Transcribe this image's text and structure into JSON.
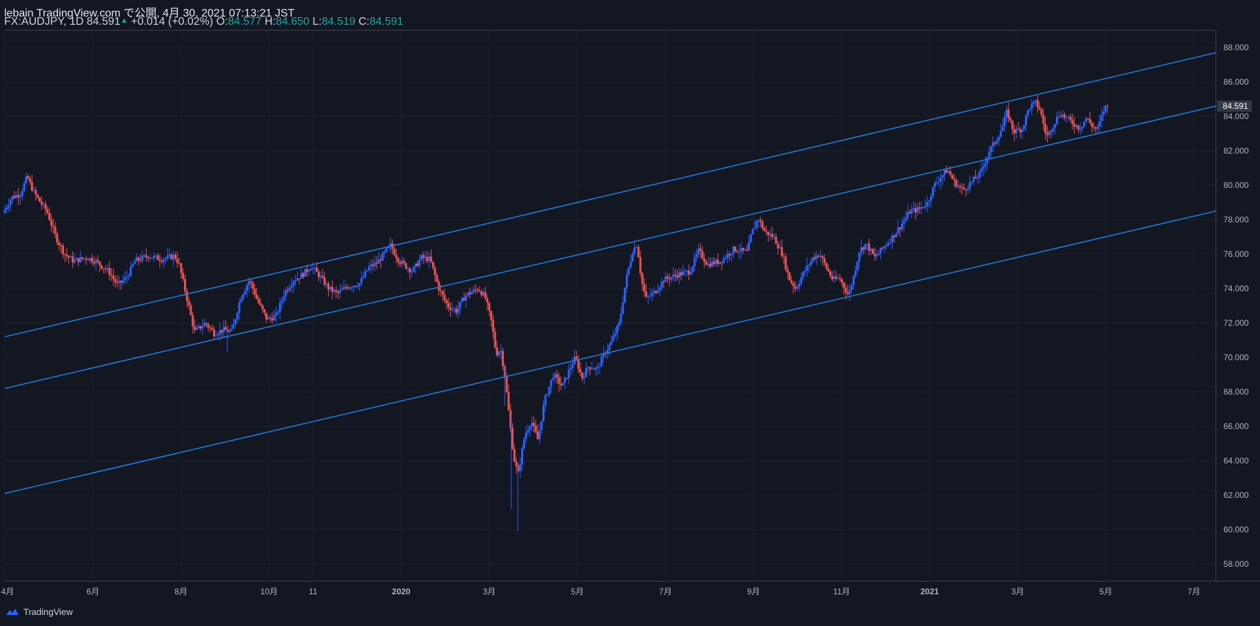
{
  "header": {
    "line1": "lebain TradingView.com で公開, 4月 30, 2021 07:13:21 JST",
    "symbol": "FX:AUDJPY, 1D",
    "last": "84.591",
    "change": "+0.014 (+0.02%)",
    "o_label": "O:",
    "o_value": "84.577",
    "h_label": "H:",
    "h_value": "84.650",
    "l_label": "L:",
    "l_value": "84.519",
    "c_label": "C:",
    "c_value": "84.591"
  },
  "footer": {
    "brand": "TradingView"
  },
  "colors": {
    "background": "#131722",
    "up": "#2962ff",
    "down": "#ef5350",
    "channel": "#2479d8",
    "text": "#b2b5be"
  },
  "chart_data": {
    "type": "candlestick",
    "symbol": "FX:AUDJPY",
    "interval": "1D",
    "ylim": [
      57.0,
      89.0
    ],
    "y_ticks": [
      "88.000",
      "86.000",
      "84.000",
      "82.000",
      "80.000",
      "78.000",
      "76.000",
      "74.000",
      "72.000",
      "70.000",
      "68.000",
      "66.000",
      "64.000",
      "62.000",
      "60.000",
      "58.000"
    ],
    "x_ticks": [
      {
        "label": "4月",
        "pos": 0.0
      },
      {
        "label": "6月",
        "pos": 2.0
      },
      {
        "label": "8月",
        "pos": 4.0
      },
      {
        "label": "10月",
        "pos": 6.0
      },
      {
        "label": "11",
        "pos": 7.0
      },
      {
        "label": "2020",
        "pos": 9.0,
        "bold": true
      },
      {
        "label": "3月",
        "pos": 11.0
      },
      {
        "label": "5月",
        "pos": 13.0
      },
      {
        "label": "7月",
        "pos": 15.0
      },
      {
        "label": "9月",
        "pos": 17.0
      },
      {
        "label": "11月",
        "pos": 19.0
      },
      {
        "label": "2021",
        "pos": 21.0,
        "bold": true
      },
      {
        "label": "3月",
        "pos": 23.0
      },
      {
        "label": "5月",
        "pos": 25.0
      },
      {
        "label": "7月",
        "pos": 27.0
      }
    ],
    "last_price_label": "84.591",
    "last_price": 84.591,
    "price_path": [
      [
        0.0,
        78.4
      ],
      [
        0.2,
        79.3
      ],
      [
        0.4,
        79.5
      ],
      [
        0.55,
        80.5
      ],
      [
        0.7,
        79.6
      ],
      [
        0.85,
        79.0
      ],
      [
        1.0,
        78.5
      ],
      [
        1.2,
        77.0
      ],
      [
        1.4,
        76.0
      ],
      [
        1.6,
        75.6
      ],
      [
        1.9,
        75.8
      ],
      [
        2.1,
        75.6
      ],
      [
        2.4,
        75.0
      ],
      [
        2.6,
        74.2
      ],
      [
        2.8,
        74.6
      ],
      [
        3.0,
        75.6
      ],
      [
        3.3,
        75.9
      ],
      [
        3.6,
        75.7
      ],
      [
        3.9,
        75.9
      ],
      [
        4.0,
        75.4
      ],
      [
        4.2,
        73.2
      ],
      [
        4.35,
        71.5
      ],
      [
        4.6,
        72.0
      ],
      [
        4.8,
        71.4
      ],
      [
        5.0,
        71.6
      ],
      [
        5.2,
        71.5
      ],
      [
        5.4,
        73.5
      ],
      [
        5.6,
        74.5
      ],
      [
        5.8,
        73.2
      ],
      [
        6.0,
        72.2
      ],
      [
        6.2,
        72.4
      ],
      [
        6.4,
        73.8
      ],
      [
        6.6,
        74.5
      ],
      [
        6.8,
        74.8
      ],
      [
        7.0,
        75.3
      ],
      [
        7.2,
        74.7
      ],
      [
        7.4,
        74.0
      ],
      [
        7.6,
        73.7
      ],
      [
        7.8,
        74.1
      ],
      [
        8.1,
        74.3
      ],
      [
        8.3,
        75.2
      ],
      [
        8.5,
        75.5
      ],
      [
        8.8,
        76.5
      ],
      [
        9.0,
        75.6
      ],
      [
        9.3,
        75.0
      ],
      [
        9.5,
        75.8
      ],
      [
        9.7,
        75.7
      ],
      [
        9.9,
        74.0
      ],
      [
        10.1,
        73.0
      ],
      [
        10.3,
        72.7
      ],
      [
        10.5,
        73.6
      ],
      [
        10.8,
        74.0
      ],
      [
        10.95,
        73.5
      ],
      [
        11.1,
        72.0
      ],
      [
        11.2,
        70.2
      ],
      [
        11.3,
        70.5
      ],
      [
        11.4,
        68.9
      ],
      [
        11.5,
        66.5
      ],
      [
        11.6,
        64.2
      ],
      [
        11.7,
        63.2
      ],
      [
        11.85,
        65.5
      ],
      [
        12.0,
        66.3
      ],
      [
        12.15,
        65.2
      ],
      [
        12.3,
        67.5
      ],
      [
        12.5,
        69.0
      ],
      [
        12.7,
        68.3
      ],
      [
        12.9,
        69.5
      ],
      [
        13.0,
        70.0
      ],
      [
        13.15,
        68.8
      ],
      [
        13.3,
        69.5
      ],
      [
        13.5,
        69.3
      ],
      [
        13.65,
        70.2
      ],
      [
        13.8,
        70.8
      ],
      [
        14.0,
        72.0
      ],
      [
        14.15,
        74.5
      ],
      [
        14.3,
        76.2
      ],
      [
        14.4,
        76.6
      ],
      [
        14.5,
        74.5
      ],
      [
        14.6,
        73.4
      ],
      [
        14.8,
        73.8
      ],
      [
        15.0,
        74.5
      ],
      [
        15.3,
        74.8
      ],
      [
        15.6,
        75.0
      ],
      [
        15.8,
        76.2
      ],
      [
        16.0,
        75.4
      ],
      [
        16.3,
        75.6
      ],
      [
        16.6,
        76.3
      ],
      [
        16.9,
        76.1
      ],
      [
        17.0,
        77.2
      ],
      [
        17.15,
        78.1
      ],
      [
        17.3,
        77.3
      ],
      [
        17.5,
        77.0
      ],
      [
        17.7,
        76.0
      ],
      [
        17.85,
        74.6
      ],
      [
        18.0,
        74.0
      ],
      [
        18.2,
        75.0
      ],
      [
        18.4,
        75.8
      ],
      [
        18.55,
        76.0
      ],
      [
        18.7,
        75.2
      ],
      [
        18.85,
        74.5
      ],
      [
        19.0,
        74.6
      ],
      [
        19.2,
        73.6
      ],
      [
        19.3,
        74.5
      ],
      [
        19.45,
        76.2
      ],
      [
        19.6,
        76.6
      ],
      [
        19.8,
        75.8
      ],
      [
        20.0,
        76.4
      ],
      [
        20.2,
        77.0
      ],
      [
        20.4,
        77.7
      ],
      [
        20.6,
        78.5
      ],
      [
        20.8,
        78.6
      ],
      [
        21.0,
        79.0
      ],
      [
        21.15,
        80.0
      ],
      [
        21.3,
        80.5
      ],
      [
        21.45,
        80.9
      ],
      [
        21.6,
        80.2
      ],
      [
        21.8,
        79.7
      ],
      [
        22.0,
        80.2
      ],
      [
        22.2,
        80.7
      ],
      [
        22.4,
        82.0
      ],
      [
        22.55,
        82.6
      ],
      [
        22.7,
        83.4
      ],
      [
        22.8,
        84.3
      ],
      [
        22.95,
        83.1
      ],
      [
        23.15,
        83.3
      ],
      [
        23.3,
        84.5
      ],
      [
        23.45,
        84.8
      ],
      [
        23.55,
        84.4
      ],
      [
        23.7,
        82.8
      ],
      [
        23.85,
        83.5
      ],
      [
        24.0,
        84.2
      ],
      [
        24.15,
        83.9
      ],
      [
        24.3,
        83.6
      ],
      [
        24.45,
        83.3
      ],
      [
        24.6,
        83.9
      ],
      [
        24.75,
        83.4
      ],
      [
        24.85,
        83.2
      ],
      [
        25.0,
        84.4
      ],
      [
        25.05,
        84.591
      ]
    ],
    "channel_lines": [
      {
        "p1": [
          0.0,
          71.2
        ],
        "p2": [
          27.5,
          87.7
        ]
      },
      {
        "p1": [
          0.0,
          68.2
        ],
        "p2": [
          27.5,
          84.6
        ]
      },
      {
        "p1": [
          0.0,
          62.1
        ],
        "p2": [
          27.5,
          78.5
        ]
      }
    ]
  }
}
